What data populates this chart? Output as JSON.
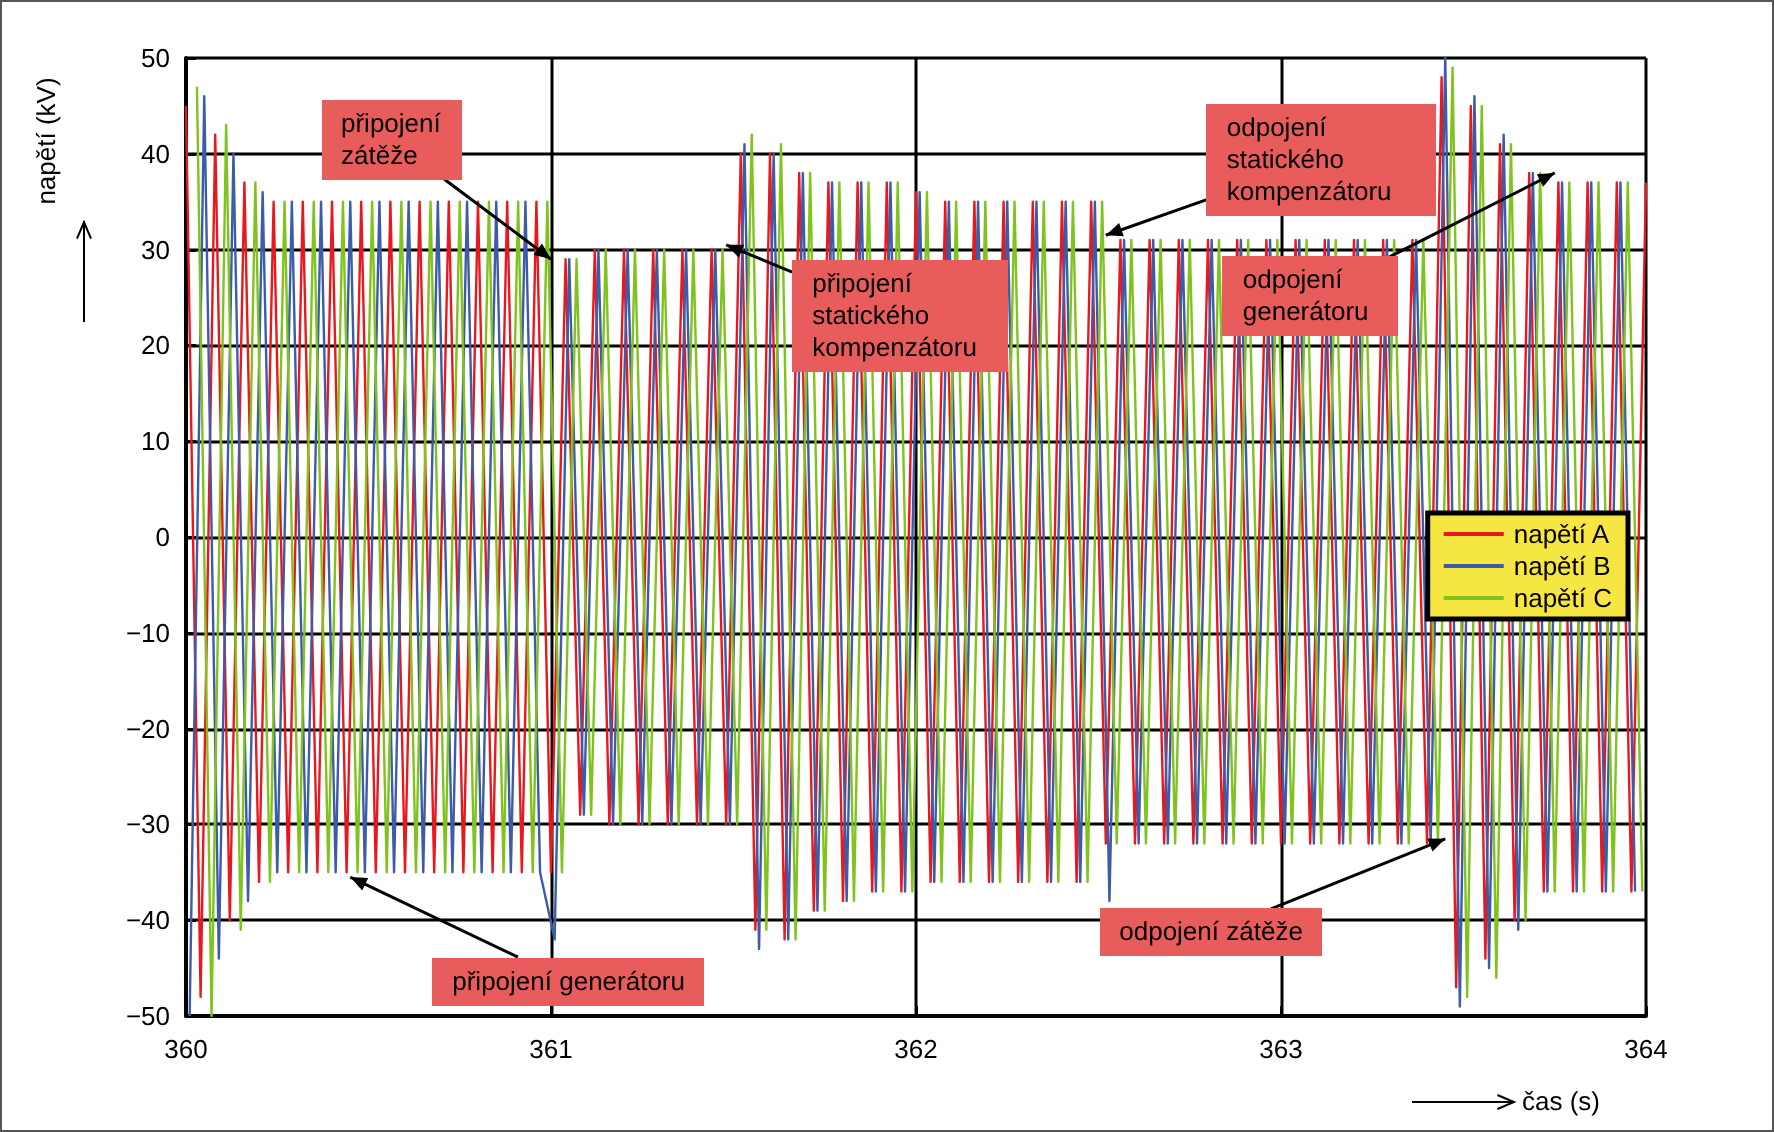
{
  "chart_data": {
    "type": "line",
    "xlabel": "čas (s)",
    "ylabel": "napětí (kV)",
    "xlim": [
      360,
      364
    ],
    "xticks": [
      360,
      361,
      362,
      363,
      364
    ],
    "ylim": [
      -50,
      50
    ],
    "yticks": [
      -50,
      -40,
      -30,
      -20,
      -10,
      0,
      10,
      20,
      30,
      40,
      50
    ],
    "grid": true,
    "legend": "right",
    "marker": "none",
    "line_style": "solid",
    "annotations": [
      {
        "text": "připojení zátěže",
        "x": 361.0,
        "y": 29
      },
      {
        "text": "připojení statického kompenzátoru",
        "x": 361.48,
        "y": 30.5
      },
      {
        "text": "odpojení statického kompenzátoru",
        "x": 362.52,
        "y": 31.5
      },
      {
        "text": "odpojení generátoru",
        "x": 363.75,
        "y": 38
      },
      {
        "text": "připojení generátoru",
        "x": 360.45,
        "y": -35.5
      },
      {
        "text": "odpojení zátěže",
        "x": 363.45,
        "y": -31.5
      }
    ],
    "series": [
      {
        "name": "napětí A",
        "color": "#e8191e",
        "x": [
          360,
          360.04,
          360.08,
          360.12,
          360.16,
          360.2,
          360.24,
          360.28,
          360.32,
          360.36,
          360.4,
          360.44,
          360.48,
          360.52,
          360.56,
          360.6,
          360.64,
          360.68,
          360.72,
          360.76,
          360.8,
          360.84,
          360.88,
          360.92,
          360.96,
          361,
          361.04,
          361.08,
          361.12,
          361.16,
          361.2,
          361.24,
          361.28,
          361.32,
          361.36,
          361.4,
          361.44,
          361.48,
          361.52,
          361.56,
          361.6,
          361.64,
          361.68,
          361.72,
          361.76,
          361.8,
          361.84,
          361.88,
          361.92,
          361.96,
          362,
          362.04,
          362.08,
          362.12,
          362.16,
          362.2,
          362.24,
          362.28,
          362.32,
          362.36,
          362.4,
          362.44,
          362.48,
          362.52,
          362.56,
          362.6,
          362.64,
          362.68,
          362.72,
          362.76,
          362.8,
          362.84,
          362.88,
          362.92,
          362.96,
          363,
          363.04,
          363.08,
          363.12,
          363.16,
          363.2,
          363.24,
          363.28,
          363.32,
          363.36,
          363.4,
          363.44,
          363.48,
          363.52,
          363.56,
          363.6,
          363.64,
          363.68,
          363.72,
          363.76,
          363.8,
          363.84,
          363.88,
          363.92,
          363.96,
          364
        ],
        "values": [
          45,
          -48,
          42,
          -40,
          37,
          -36,
          35,
          -35,
          35,
          -35,
          35,
          -35,
          35,
          -35,
          35,
          -35,
          35,
          -35,
          35,
          -35,
          35,
          -35,
          35,
          -35,
          35,
          -35,
          29,
          -29,
          30,
          -30,
          30,
          -30,
          30,
          -30,
          30,
          -30,
          30,
          -30,
          40,
          -41,
          40,
          -42,
          38,
          -39,
          37,
          -38,
          37,
          -37,
          37,
          -37,
          36,
          -36,
          35,
          -36,
          35,
          -36,
          35,
          -36,
          35,
          -36,
          35,
          -36,
          35,
          -32,
          31,
          -32,
          31,
          -32,
          31,
          -32,
          31,
          -32,
          31,
          -32,
          31,
          -32,
          31,
          -32,
          31,
          -32,
          31,
          -32,
          31,
          -32,
          31,
          -32,
          48,
          -47,
          45,
          -44,
          41,
          -40,
          38,
          -37,
          37,
          -37,
          37,
          -37,
          37,
          -37,
          37
        ]
      },
      {
        "name": "napětí B",
        "color": "#3c5ba8",
        "x": [
          360.01,
          360.05,
          360.09,
          360.13,
          360.17,
          360.21,
          360.25,
          360.29,
          360.33,
          360.37,
          360.41,
          360.45,
          360.49,
          360.53,
          360.57,
          360.61,
          360.65,
          360.69,
          360.73,
          360.77,
          360.81,
          360.85,
          360.89,
          360.93,
          360.97,
          361.01,
          361.05,
          361.09,
          361.13,
          361.17,
          361.21,
          361.25,
          361.29,
          361.33,
          361.37,
          361.41,
          361.45,
          361.49,
          361.53,
          361.57,
          361.61,
          361.65,
          361.69,
          361.73,
          361.77,
          361.81,
          361.85,
          361.89,
          361.93,
          361.97,
          362.01,
          362.05,
          362.09,
          362.13,
          362.17,
          362.21,
          362.25,
          362.29,
          362.33,
          362.37,
          362.41,
          362.45,
          362.49,
          362.53,
          362.57,
          362.61,
          362.65,
          362.69,
          362.73,
          362.77,
          362.81,
          362.85,
          362.89,
          362.93,
          362.97,
          363.01,
          363.05,
          363.09,
          363.13,
          363.17,
          363.21,
          363.25,
          363.29,
          363.33,
          363.37,
          363.41,
          363.45,
          363.49,
          363.53,
          363.57,
          363.61,
          363.65,
          363.69,
          363.73,
          363.77,
          363.81,
          363.85,
          363.89,
          363.93,
          363.97
        ],
        "values": [
          -50,
          46,
          -44,
          40,
          -38,
          36,
          -35,
          35,
          -35,
          35,
          -35,
          35,
          -35,
          35,
          -35,
          35,
          -35,
          35,
          -35,
          35,
          -35,
          35,
          -35,
          35,
          -35,
          -42,
          29,
          -29,
          30,
          -30,
          30,
          -30,
          30,
          -30,
          30,
          -30,
          30,
          -30,
          41,
          -43,
          40,
          -42,
          38,
          -39,
          37,
          -38,
          37,
          -37,
          37,
          -37,
          36,
          -36,
          35,
          -36,
          35,
          -36,
          35,
          -36,
          35,
          -36,
          35,
          -36,
          35,
          -38,
          31,
          -32,
          31,
          -32,
          31,
          -32,
          31,
          -32,
          31,
          -32,
          31,
          -32,
          31,
          -32,
          31,
          -32,
          31,
          -32,
          31,
          -32,
          31,
          -32,
          50,
          -49,
          46,
          -45,
          42,
          -41,
          38,
          -37,
          37,
          -37,
          37,
          -37,
          37,
          -37
        ]
      },
      {
        "name": "napětí C",
        "color": "#7fc31c",
        "x": [
          360.03,
          360.07,
          360.11,
          360.15,
          360.19,
          360.23,
          360.27,
          360.31,
          360.35,
          360.39,
          360.43,
          360.47,
          360.51,
          360.55,
          360.59,
          360.63,
          360.67,
          360.71,
          360.75,
          360.79,
          360.83,
          360.87,
          360.91,
          360.95,
          360.99,
          361.03,
          361.07,
          361.11,
          361.15,
          361.19,
          361.23,
          361.27,
          361.31,
          361.35,
          361.39,
          361.43,
          361.47,
          361.51,
          361.55,
          361.59,
          361.63,
          361.67,
          361.71,
          361.75,
          361.79,
          361.83,
          361.87,
          361.91,
          361.95,
          361.99,
          362.03,
          362.07,
          362.11,
          362.15,
          362.19,
          362.23,
          362.27,
          362.31,
          362.35,
          362.39,
          362.43,
          362.47,
          362.51,
          362.55,
          362.59,
          362.63,
          362.67,
          362.71,
          362.75,
          362.79,
          362.83,
          362.87,
          362.91,
          362.95,
          362.99,
          363.03,
          363.07,
          363.11,
          363.15,
          363.19,
          363.23,
          363.27,
          363.31,
          363.35,
          363.39,
          363.43,
          363.47,
          363.51,
          363.55,
          363.59,
          363.63,
          363.67,
          363.71,
          363.75,
          363.79,
          363.83,
          363.87,
          363.91,
          363.95,
          363.99
        ],
        "values": [
          47,
          -50,
          43,
          -41,
          37,
          -36,
          35,
          -35,
          35,
          -35,
          35,
          -35,
          35,
          -35,
          35,
          -35,
          35,
          -35,
          35,
          -35,
          35,
          -35,
          35,
          -35,
          35,
          -35,
          29,
          -29,
          30,
          -30,
          30,
          -30,
          30,
          -30,
          30,
          -30,
          30,
          -30,
          42,
          -41,
          41,
          -42,
          38,
          -39,
          37,
          -38,
          37,
          -37,
          37,
          -37,
          36,
          -36,
          35,
          -36,
          35,
          -36,
          35,
          -36,
          35,
          -36,
          35,
          -36,
          35,
          -32,
          31,
          -32,
          31,
          -32,
          31,
          -32,
          31,
          -32,
          31,
          -32,
          31,
          -32,
          31,
          -32,
          31,
          -32,
          31,
          -32,
          31,
          -32,
          31,
          -32,
          49,
          -48,
          45,
          -46,
          41,
          -40,
          38,
          -37,
          37,
          -37,
          37,
          -37,
          37,
          -37
        ]
      }
    ]
  }
}
